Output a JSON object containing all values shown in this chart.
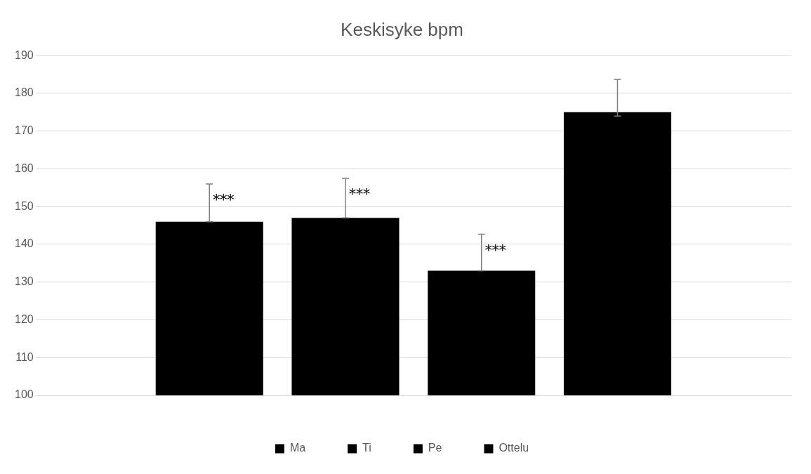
{
  "chart_data": {
    "type": "bar",
    "title": "Keskisyke bpm",
    "categories": [
      null
    ],
    "series": [
      {
        "name": "Ma",
        "color": "#000000",
        "values": [
          146
        ],
        "errors": [
          [
            146,
            156
          ]
        ],
        "value_labels": [
          "***"
        ]
      },
      {
        "name": "Ti",
        "color": "#000000",
        "values": [
          147
        ],
        "errors": [
          [
            147,
            157.5
          ]
        ],
        "value_labels": [
          "***"
        ]
      },
      {
        "name": "Pe",
        "color": "#000000",
        "values": [
          133
        ],
        "errors": [
          [
            133,
            142.7
          ]
        ],
        "value_labels": [
          "***"
        ]
      },
      {
        "name": "Ottelu",
        "color": "#000000",
        "values": [
          175
        ],
        "errors": [
          [
            174,
            183.7
          ]
        ]
      }
    ],
    "ylim": [
      100,
      190
    ],
    "yticks": [
      100,
      110,
      120,
      130,
      140,
      150,
      160,
      170,
      180,
      190
    ],
    "grid": "y",
    "legend": "bottom"
  }
}
